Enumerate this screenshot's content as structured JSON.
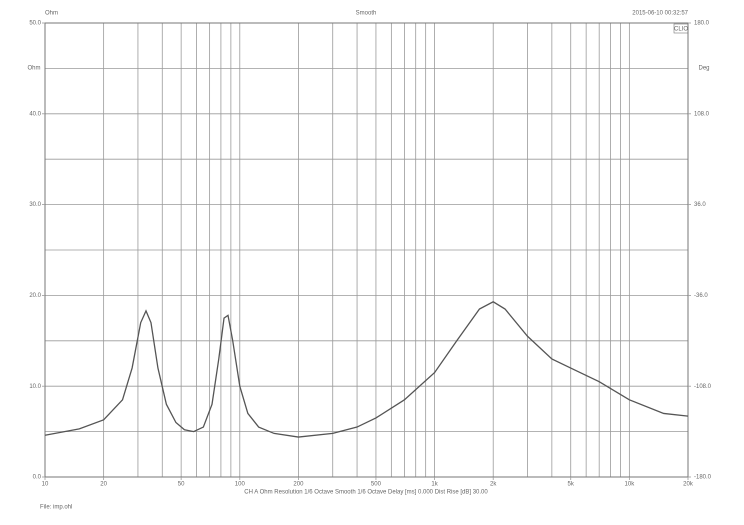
{
  "chart_data": {
    "type": "line",
    "top_left": "Ohm",
    "title": "Smooth",
    "timestamp": "2015-06-10 00:32:57",
    "badge": "CLIO",
    "ylabel": "Ohm",
    "y2label": "Deg",
    "footer": "CH A   Ohm   Resolution 1/6 Octave   Smooth 1/6 Octave   Delay [ms] 0.000   Dist Rise [dB] 30.00",
    "file_label": "File: imp.ohl",
    "xscale": "log",
    "grid": true,
    "color": "#555555",
    "xlim": [
      10,
      20000
    ],
    "ylim": [
      0,
      50
    ],
    "y2lim": [
      -180,
      180
    ],
    "xticks": [
      10,
      20,
      50,
      100,
      200,
      500,
      {
        "value": 1000,
        "label": "1k"
      },
      {
        "value": 2000,
        "label": "2k"
      },
      {
        "value": 5000,
        "label": "5k"
      },
      {
        "value": 10000,
        "label": "10k"
      },
      {
        "value": 20000,
        "label": "20k"
      }
    ],
    "yticks": [
      {
        "value": 0,
        "label": "0.0"
      },
      {
        "value": 10,
        "label": "10.0"
      },
      {
        "value": 20,
        "label": "20.0"
      },
      {
        "value": 30,
        "label": "30.0"
      },
      {
        "value": 40,
        "label": "40.0"
      },
      {
        "value": 50,
        "label": "50.0"
      }
    ],
    "y2ticks": [
      {
        "value": -180,
        "label": "-180.0"
      },
      {
        "value": -108,
        "label": "-108.0"
      },
      {
        "value": -36,
        "label": "-36.0"
      },
      {
        "value": 36,
        "label": "36.0"
      },
      {
        "value": 108,
        "label": "108.0"
      },
      {
        "value": 180,
        "label": "180.0"
      }
    ],
    "xgrid": [
      10,
      20,
      30,
      40,
      50,
      60,
      70,
      80,
      90,
      100,
      200,
      300,
      400,
      500,
      600,
      700,
      800,
      900,
      1000,
      2000,
      3000,
      4000,
      5000,
      6000,
      7000,
      8000,
      9000,
      10000,
      20000
    ],
    "ygrid": [
      0,
      5,
      10,
      15,
      20,
      25,
      30,
      35,
      40,
      45,
      50
    ],
    "series": [
      {
        "name": "Ohm",
        "x": [
          10,
          15,
          20,
          25,
          28,
          31,
          33,
          35,
          38,
          42,
          47,
          52,
          58,
          65,
          72,
          78,
          83,
          87,
          92,
          100,
          110,
          125,
          150,
          200,
          300,
          400,
          500,
          700,
          1000,
          1300,
          1700,
          2000,
          2300,
          3000,
          4000,
          5000,
          7000,
          10000,
          15000,
          20000
        ],
        "values": [
          4.6,
          5.3,
          6.3,
          8.5,
          12,
          17,
          18.3,
          17,
          12,
          8,
          6,
          5.2,
          5,
          5.5,
          8,
          13,
          17.5,
          17.8,
          15,
          10,
          7,
          5.5,
          4.8,
          4.4,
          4.8,
          5.5,
          6.5,
          8.5,
          11.5,
          15,
          18.5,
          19.3,
          18.5,
          15.5,
          13,
          12,
          10.5,
          8.5,
          7,
          6.7
        ]
      }
    ]
  }
}
